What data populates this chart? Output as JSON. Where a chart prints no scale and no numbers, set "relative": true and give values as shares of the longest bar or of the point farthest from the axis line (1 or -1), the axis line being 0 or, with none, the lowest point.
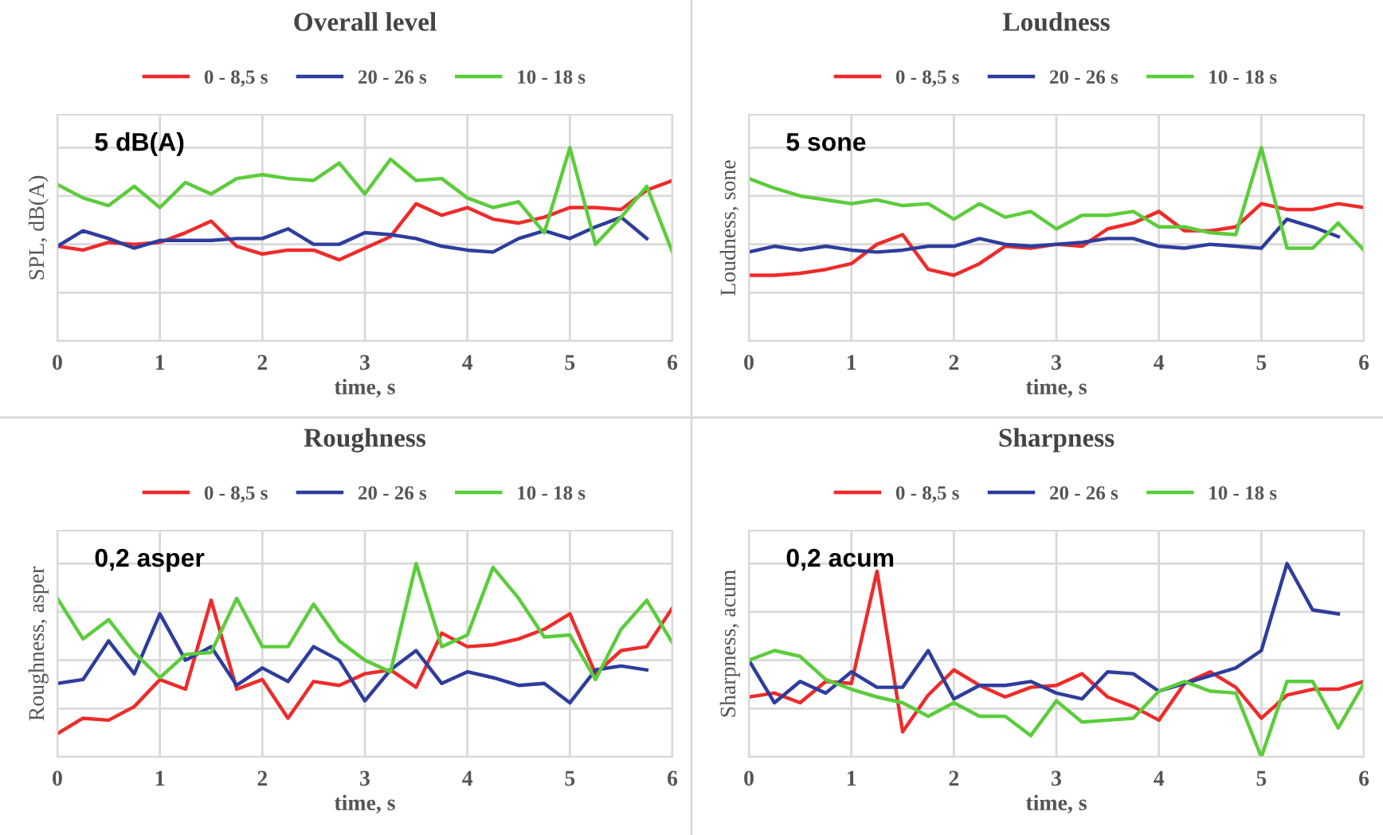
{
  "chart_data": [
    {
      "type": "line",
      "title": "Overall level",
      "xlabel": "time, s",
      "ylabel": "SPL, dB(A)",
      "relative": true,
      "annotations": [
        "5 dB(A)"
      ],
      "xlim": [
        0,
        6
      ],
      "xticks": [
        0,
        1,
        2,
        3,
        4,
        5,
        6
      ],
      "tick_labels": "x",
      "grid": true,
      "legend": "top",
      "marker": "none",
      "line_style": "solid",
      "x": [
        0,
        0.25,
        0.5,
        0.75,
        1,
        1.25,
        1.5,
        1.75,
        2,
        2.25,
        2.5,
        2.75,
        3,
        3.25,
        3.5,
        3.75,
        4,
        4.25,
        4.5,
        4.75,
        5,
        5.25,
        5.5,
        5.75,
        6
      ],
      "series": [
        {
          "name": "0 - 8,5 s",
          "color": "#ee2b2b",
          "values": [
            0.49,
            0.47,
            0.51,
            0.5,
            0.51,
            0.56,
            0.62,
            0.49,
            0.45,
            0.47,
            0.47,
            0.42,
            0.48,
            0.54,
            0.71,
            0.65,
            0.69,
            0.63,
            0.61,
            0.64,
            0.69,
            0.69,
            0.68,
            0.78,
            0.83
          ]
        },
        {
          "name": "20 - 26 s",
          "color": "#2e3d9c",
          "values": [
            0.49,
            0.57,
            0.53,
            0.48,
            0.52,
            0.52,
            0.52,
            0.53,
            0.53,
            0.58,
            0.5,
            0.5,
            0.56,
            0.55,
            0.53,
            0.49,
            0.47,
            0.46,
            0.53,
            0.57,
            0.53,
            0.59,
            0.64,
            0.53,
            null
          ]
        },
        {
          "name": "10 - 18 s",
          "color": "#5ccc3c",
          "values": [
            0.81,
            0.74,
            0.7,
            0.8,
            0.69,
            0.82,
            0.76,
            0.84,
            0.86,
            0.84,
            0.83,
            0.92,
            0.76,
            0.94,
            0.83,
            0.84,
            0.74,
            0.69,
            0.72,
            0.56,
            1,
            0.5,
            0.64,
            0.8,
            0.46
          ]
        }
      ]
    },
    {
      "type": "line",
      "title": "Loudness",
      "xlabel": "time, s",
      "ylabel": "Loudness, sone",
      "relative": true,
      "annotations": [
        "5 sone"
      ],
      "xlim": [
        0,
        6
      ],
      "xticks": [
        0,
        1,
        2,
        3,
        4,
        5,
        6
      ],
      "tick_labels": "x",
      "grid": true,
      "legend": "top",
      "marker": "none",
      "line_style": "solid",
      "x": [
        0,
        0.25,
        0.5,
        0.75,
        1,
        1.25,
        1.5,
        1.75,
        2,
        2.25,
        2.5,
        2.75,
        3,
        3.25,
        3.5,
        3.75,
        4,
        4.25,
        4.5,
        4.75,
        5,
        5.25,
        5.5,
        5.75,
        6
      ],
      "series": [
        {
          "name": "0 - 8,5 s",
          "color": "#ee2b2b",
          "values": [
            0.34,
            0.34,
            0.35,
            0.37,
            0.4,
            0.5,
            0.55,
            0.37,
            0.34,
            0.4,
            0.49,
            0.48,
            0.5,
            0.49,
            0.58,
            0.61,
            0.67,
            0.57,
            0.57,
            0.59,
            0.71,
            0.68,
            0.68,
            0.71,
            0.69
          ]
        },
        {
          "name": "20 - 26 s",
          "color": "#2e3d9c",
          "values": [
            0.46,
            0.49,
            0.47,
            0.49,
            0.47,
            0.46,
            0.47,
            0.49,
            0.49,
            0.53,
            0.5,
            0.49,
            0.5,
            0.51,
            0.53,
            0.53,
            0.49,
            0.48,
            0.5,
            0.49,
            0.48,
            0.63,
            0.59,
            0.54,
            null
          ]
        },
        {
          "name": "10 - 18 s",
          "color": "#5ccc3c",
          "values": [
            0.84,
            0.79,
            0.75,
            0.73,
            0.71,
            0.73,
            0.7,
            0.71,
            0.63,
            0.71,
            0.64,
            0.67,
            0.58,
            0.65,
            0.65,
            0.67,
            0.59,
            0.59,
            0.56,
            0.55,
            1,
            0.48,
            0.48,
            0.61,
            0.47
          ]
        }
      ]
    },
    {
      "type": "line",
      "title": "Roughness",
      "xlabel": "time, s",
      "ylabel": "Roughness, asper",
      "relative": true,
      "annotations": [
        "0,2 asper"
      ],
      "xlim": [
        0,
        6
      ],
      "xticks": [
        0,
        1,
        2,
        3,
        4,
        5,
        6
      ],
      "tick_labels": "x",
      "grid": true,
      "legend": "top",
      "marker": "none",
      "line_style": "solid",
      "x": [
        0,
        0.25,
        0.5,
        0.75,
        1,
        1.25,
        1.5,
        1.75,
        2,
        2.25,
        2.5,
        2.75,
        3,
        3.25,
        3.5,
        3.75,
        4,
        4.25,
        4.5,
        4.75,
        5,
        5.25,
        5.5,
        5.75,
        6
      ],
      "series": [
        {
          "name": "0 - 8,5 s",
          "color": "#ee2b2b",
          "values": [
            0.12,
            0.2,
            0.19,
            0.26,
            0.4,
            0.35,
            0.81,
            0.35,
            0.4,
            0.2,
            0.39,
            0.37,
            0.43,
            0.45,
            0.36,
            0.64,
            0.57,
            0.58,
            0.61,
            0.66,
            0.74,
            0.43,
            0.55,
            0.57,
            0.77
          ]
        },
        {
          "name": "20 - 26 s",
          "color": "#2e3d9c",
          "values": [
            0.38,
            0.4,
            0.6,
            0.43,
            0.74,
            0.5,
            0.57,
            0.37,
            0.46,
            0.39,
            0.57,
            0.5,
            0.29,
            0.45,
            0.55,
            0.38,
            0.44,
            0.41,
            0.37,
            0.38,
            0.28,
            0.45,
            0.47,
            0.45,
            null
          ]
        },
        {
          "name": "10 - 18 s",
          "color": "#5ccc3c",
          "values": [
            0.82,
            0.61,
            0.71,
            0.54,
            0.41,
            0.53,
            0.54,
            0.82,
            0.57,
            0.57,
            0.79,
            0.6,
            0.5,
            0.44,
            1,
            0.57,
            0.63,
            0.98,
            0.82,
            0.62,
            0.63,
            0.4,
            0.66,
            0.81,
            0.59
          ]
        }
      ]
    },
    {
      "type": "line",
      "title": "Sharpness",
      "xlabel": "time, s",
      "ylabel": "Sharpness, acum",
      "relative": true,
      "annotations": [
        "0,2 acum"
      ],
      "xlim": [
        0,
        6
      ],
      "xticks": [
        0,
        1,
        2,
        3,
        4,
        5,
        6
      ],
      "tick_labels": "x",
      "grid": true,
      "legend": "top",
      "marker": "none",
      "line_style": "solid",
      "x": [
        0,
        0.25,
        0.5,
        0.75,
        1,
        1.25,
        1.5,
        1.75,
        2,
        2.25,
        2.5,
        2.75,
        3,
        3.25,
        3.5,
        3.75,
        4,
        4.25,
        4.5,
        4.75,
        5,
        5.25,
        5.5,
        5.75,
        6
      ],
      "series": [
        {
          "name": "0 - 8,5 s",
          "color": "#ee2b2b",
          "values": [
            0.31,
            0.33,
            0.28,
            0.39,
            0.38,
            0.96,
            0.13,
            0.32,
            0.45,
            0.37,
            0.31,
            0.36,
            0.37,
            0.43,
            0.31,
            0.26,
            0.19,
            0.38,
            0.44,
            0.36,
            0.2,
            0.32,
            0.35,
            0.35,
            0.39
          ]
        },
        {
          "name": "20 - 26 s",
          "color": "#2e3d9c",
          "values": [
            0.5,
            0.28,
            0.39,
            0.33,
            0.44,
            0.36,
            0.36,
            0.55,
            0.3,
            0.37,
            0.37,
            0.39,
            0.33,
            0.3,
            0.44,
            0.43,
            0.34,
            0.38,
            0.42,
            0.46,
            0.55,
            1,
            0.76,
            0.74,
            null
          ]
        },
        {
          "name": "10 - 18 s",
          "color": "#5ccc3c",
          "values": [
            0.5,
            0.55,
            0.52,
            0.4,
            0.35,
            0.31,
            0.28,
            0.21,
            0.28,
            0.21,
            0.21,
            0.11,
            0.29,
            0.18,
            0.19,
            0.2,
            0.34,
            0.39,
            0.34,
            0.33,
            0,
            0.39,
            0.39,
            0.15,
            0.38
          ]
        }
      ]
    }
  ]
}
